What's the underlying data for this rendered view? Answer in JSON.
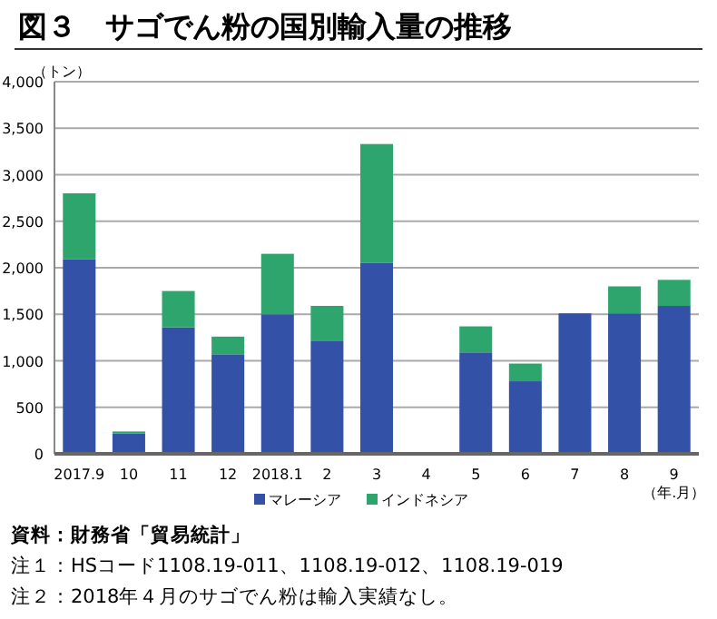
{
  "chart_data": {
    "type": "bar",
    "title": "図３　サゴでん粉の国別輸入量の推移",
    "ylabel": "（トン）",
    "xlabel": "（年.月）",
    "stacked": true,
    "categories": [
      "2017.9",
      "10",
      "11",
      "12",
      "2018.1",
      "2",
      "3",
      "4",
      "5",
      "6",
      "7",
      "8",
      "9"
    ],
    "series": [
      {
        "name": "マレーシア",
        "color": "#3451a8",
        "values": [
          2090,
          220,
          1360,
          1070,
          1500,
          1210,
          2050,
          0,
          1090,
          780,
          1510,
          1510,
          1590
        ]
      },
      {
        "name": "インドネシア",
        "color": "#2ea56c",
        "values": [
          710,
          20,
          390,
          190,
          650,
          380,
          1280,
          0,
          280,
          190,
          0,
          290,
          280
        ]
      }
    ],
    "ylim": [
      0,
      4000
    ],
    "yticks": [
      {
        "value": 0,
        "label": "0"
      },
      {
        "value": 500,
        "label": "500"
      },
      {
        "value": 1000,
        "label": "1,000"
      },
      {
        "value": 1500,
        "label": "1,500"
      },
      {
        "value": 2000,
        "label": "2,000"
      },
      {
        "value": 2500,
        "label": "2,500"
      },
      {
        "value": 3000,
        "label": "3,000"
      },
      {
        "value": 3500,
        "label": "3,500"
      },
      {
        "value": 4000,
        "label": "4,000"
      }
    ],
    "grid": "y",
    "legend": "bottom",
    "annotations": [
      "資料：財務省「貿易統計」",
      "注１：HSコード1108.19-011、1108.19-012、1108.19-019",
      "注２：2018年４月のサゴでん粉は輸入実績なし。"
    ]
  }
}
